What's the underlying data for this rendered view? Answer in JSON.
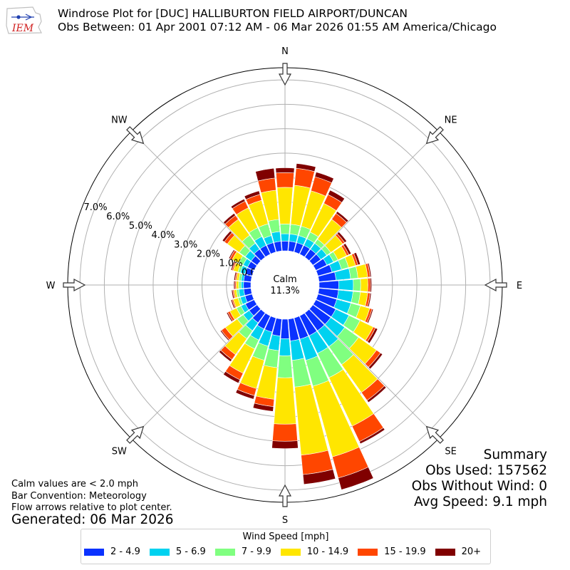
{
  "header": {
    "title_line1": "Windrose Plot for [DUC] HALLIBURTON FIELD AIRPORT/DUNCAN",
    "title_line2": "Obs Between: 01 Apr 2001 07:12 AM - 06 Mar 2026 01:55 AM America/Chicago",
    "logo_text": "IEM"
  },
  "chart_data": {
    "type": "windrose",
    "directions": [
      "N",
      "NNE",
      "NE",
      "ENE",
      "E",
      "ESE",
      "SE",
      "SSE",
      "S",
      "SSW",
      "SW",
      "WSW",
      "W",
      "WNW",
      "NW",
      "NNW"
    ],
    "direction_angles": [
      0,
      10,
      20,
      30,
      40,
      50,
      60,
      70,
      80,
      90,
      100,
      110,
      120,
      130,
      140,
      150,
      160,
      170,
      180,
      190,
      200,
      210,
      220,
      230,
      240,
      250,
      260,
      270,
      280,
      290,
      300,
      310,
      320,
      330,
      340,
      350
    ],
    "compass_labels": [
      "N",
      "NE",
      "E",
      "SE",
      "S",
      "SW",
      "W",
      "NW"
    ],
    "radial_tick_labels": [
      "0.0%",
      "1.0%",
      "2.0%",
      "3.0%",
      "4.0%",
      "5.0%",
      "6.0%",
      "7.0%"
    ],
    "rmax_percent": 7.5,
    "calm_label": "Calm",
    "calm_value": "11.3%",
    "speed_bins": [
      {
        "label": "2 - 4.9",
        "color": "#0a32ff"
      },
      {
        "label": "5 - 6.9",
        "color": "#00d2f0"
      },
      {
        "label": "7 - 9.9",
        "color": "#80ff80"
      },
      {
        "label": "10 - 14.9",
        "color": "#ffe600"
      },
      {
        "label": "15 - 19.9",
        "color": "#ff4600"
      },
      {
        "label": "20+",
        "color": "#800000"
      }
    ],
    "cumulative_percent": [
      [
        0.4,
        0.7,
        1.1,
        2.6,
        3.2,
        3.4
      ],
      [
        0.4,
        0.7,
        1.1,
        2.7,
        3.4,
        3.6
      ],
      [
        0.4,
        0.7,
        1.1,
        2.6,
        3.2,
        3.4
      ],
      [
        0.4,
        0.7,
        1.0,
        2.3,
        2.7,
        2.9
      ],
      [
        0.4,
        0.7,
        0.9,
        1.9,
        2.2,
        2.3
      ],
      [
        0.4,
        0.7,
        0.9,
        1.5,
        1.6,
        1.7
      ],
      [
        0.5,
        0.8,
        1.0,
        1.4,
        1.5,
        1.6
      ],
      [
        0.6,
        1.0,
        1.3,
        1.6,
        1.7,
        1.8
      ],
      [
        0.7,
        1.3,
        1.6,
        2.0,
        2.1,
        2.15
      ],
      [
        0.8,
        1.4,
        1.7,
        2.0,
        2.1,
        2.15
      ],
      [
        0.8,
        1.4,
        1.7,
        2.0,
        2.1,
        2.15
      ],
      [
        0.8,
        1.4,
        1.8,
        2.2,
        2.3,
        2.35
      ],
      [
        0.9,
        1.5,
        2.0,
        2.6,
        2.7,
        2.8
      ],
      [
        0.9,
        1.6,
        2.3,
        3.2,
        3.4,
        3.5
      ],
      [
        0.9,
        1.7,
        2.6,
        4.0,
        4.4,
        4.5
      ],
      [
        0.9,
        1.7,
        2.8,
        5.0,
        5.7,
        5.8
      ],
      [
        0.9,
        1.8,
        2.9,
        5.9,
        6.8,
        7.3
      ],
      [
        0.9,
        1.7,
        2.8,
        5.6,
        6.4,
        6.8
      ],
      [
        0.8,
        1.5,
        2.4,
        4.3,
        5.0,
        5.3
      ],
      [
        0.7,
        1.3,
        2.0,
        3.3,
        3.6,
        3.8
      ],
      [
        0.6,
        1.2,
        1.8,
        3.0,
        3.3,
        3.45
      ],
      [
        0.6,
        1.1,
        1.5,
        2.6,
        2.9,
        3.05
      ],
      [
        0.5,
        0.9,
        1.3,
        2.1,
        2.35,
        2.45
      ],
      [
        0.4,
        0.7,
        1.0,
        1.6,
        1.8,
        1.85
      ],
      [
        0.4,
        0.6,
        0.8,
        1.1,
        1.2,
        1.25
      ],
      [
        0.3,
        0.5,
        0.6,
        0.8,
        0.85,
        0.9
      ],
      [
        0.3,
        0.5,
        0.6,
        0.7,
        0.75,
        0.8
      ],
      [
        0.3,
        0.4,
        0.5,
        0.6,
        0.65,
        0.7
      ],
      [
        0.3,
        0.4,
        0.5,
        0.6,
        0.65,
        0.7
      ],
      [
        0.3,
        0.5,
        0.6,
        0.8,
        0.85,
        0.9
      ],
      [
        0.3,
        0.5,
        0.7,
        1.0,
        1.1,
        1.15
      ],
      [
        0.3,
        0.6,
        0.9,
        1.5,
        1.65,
        1.75
      ],
      [
        0.4,
        0.7,
        1.1,
        1.9,
        2.1,
        2.2
      ],
      [
        0.4,
        0.8,
        1.2,
        2.1,
        2.4,
        2.5
      ],
      [
        0.4,
        0.7,
        1.2,
        2.2,
        2.45,
        2.6
      ],
      [
        0.4,
        0.8,
        1.3,
        2.5,
        3.0,
        3.4
      ]
    ]
  },
  "summary": {
    "title": "Summary",
    "obs_used": "Obs Used: 157562",
    "obs_without_wind": "Obs Without Wind: 0",
    "avg_speed": "Avg Speed: 9.1 mph"
  },
  "notes": {
    "calm_note": "Calm values are < 2.0 mph",
    "bar_convention": "Bar Convention: Meteorology",
    "flow_arrows": "Flow arrows relative to plot center.",
    "generated": "Generated: 06 Mar 2026"
  },
  "legend": {
    "title": "Wind Speed [mph]"
  }
}
